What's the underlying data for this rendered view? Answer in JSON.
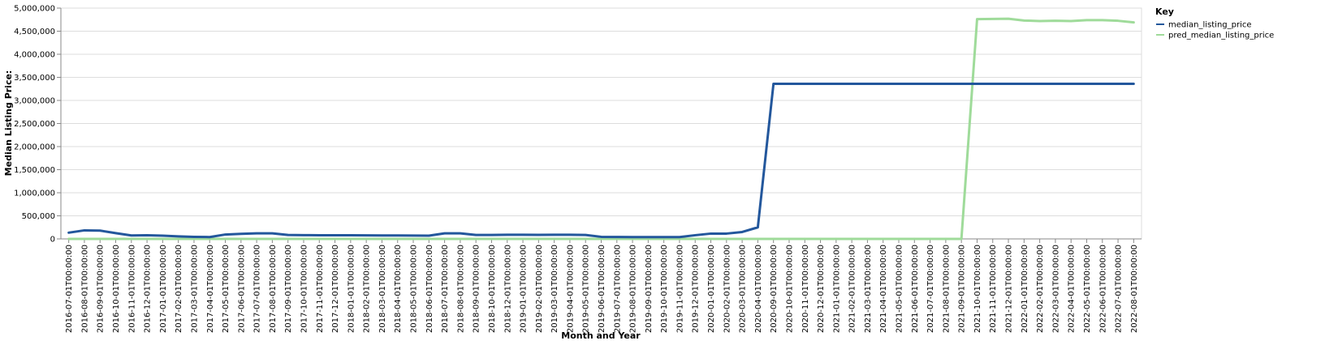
{
  "chart_data": {
    "type": "line",
    "xlabel": "Month and Year",
    "ylabel": "Median Listing Price:",
    "ylim": [
      0,
      5000000
    ],
    "y_ticks": [
      0,
      500000,
      1000000,
      1500000,
      2000000,
      2500000,
      3000000,
      3500000,
      4000000,
      4500000,
      5000000
    ],
    "y_tick_labels": [
      "0",
      "500,000",
      "1,000,000",
      "1,500,000",
      "2,000,000",
      "2,500,000",
      "3,000,000",
      "3,500,000",
      "4,000,000",
      "4,500,000",
      "5,000,000"
    ],
    "grid": true,
    "legend": {
      "title": "Key",
      "placement": "right"
    },
    "x": [
      "2016-07-01T00:00:00",
      "2016-08-01T00:00:00",
      "2016-09-01T00:00:00",
      "2016-10-01T00:00:00",
      "2016-11-01T00:00:00",
      "2016-12-01T00:00:00",
      "2017-01-01T00:00:00",
      "2017-02-01T00:00:00",
      "2017-03-01T00:00:00",
      "2017-04-01T00:00:00",
      "2017-05-01T00:00:00",
      "2017-06-01T00:00:00",
      "2017-07-01T00:00:00",
      "2017-08-01T00:00:00",
      "2017-09-01T00:00:00",
      "2017-10-01T00:00:00",
      "2017-11-01T00:00:00",
      "2017-12-01T00:00:00",
      "2018-01-01T00:00:00",
      "2018-02-01T00:00:00",
      "2018-03-01T00:00:00",
      "2018-04-01T00:00:00",
      "2018-05-01T00:00:00",
      "2018-06-01T00:00:00",
      "2018-07-01T00:00:00",
      "2018-08-01T00:00:00",
      "2018-09-01T00:00:00",
      "2018-10-01T00:00:00",
      "2018-12-01T00:00:00",
      "2019-01-01T00:00:00",
      "2019-02-01T00:00:00",
      "2019-03-01T00:00:00",
      "2019-04-01T00:00:00",
      "2019-05-01T00:00:00",
      "2019-06-01T00:00:00",
      "2019-07-01T00:00:00",
      "2019-08-01T00:00:00",
      "2019-09-01T00:00:00",
      "2019-10-01T00:00:00",
      "2019-11-01T00:00:00",
      "2019-12-01T00:00:00",
      "2020-01-01T00:00:00",
      "2020-02-01T00:00:00",
      "2020-03-01T00:00:00",
      "2020-04-01T00:00:00",
      "2020-09-01T00:00:00",
      "2020-10-01T00:00:00",
      "2020-11-01T00:00:00",
      "2020-12-01T00:00:00",
      "2021-01-01T00:00:00",
      "2021-02-01T00:00:00",
      "2021-03-01T00:00:00",
      "2021-04-01T00:00:00",
      "2021-05-01T00:00:00",
      "2021-06-01T00:00:00",
      "2021-07-01T00:00:00",
      "2021-08-01T00:00:00",
      "2021-09-01T00:00:00",
      "2021-10-01T00:00:00",
      "2021-11-01T00:00:00",
      "2021-12-01T00:00:00",
      "2022-01-01T00:00:00",
      "2022-02-01T00:00:00",
      "2022-03-01T00:00:00",
      "2022-04-01T00:00:00",
      "2022-05-01T00:00:00",
      "2022-06-01T00:00:00",
      "2022-07-01T00:00:00",
      "2022-08-01T00:00:00"
    ],
    "series": [
      {
        "name": "median_listing_price",
        "color": "#23579c",
        "values": [
          135000,
          185000,
          180000,
          125000,
          75000,
          80000,
          70000,
          55000,
          45000,
          40000,
          95000,
          110000,
          120000,
          120000,
          85000,
          82000,
          78000,
          80000,
          78000,
          77000,
          75000,
          74000,
          73000,
          70000,
          120000,
          120000,
          85000,
          85000,
          90000,
          90000,
          88000,
          90000,
          90000,
          85000,
          45000,
          42000,
          40000,
          40000,
          40000,
          40000,
          80000,
          115000,
          115000,
          150000,
          250000,
          3360000,
          3360000,
          3360000,
          3360000,
          3360000,
          3360000,
          3360000,
          3360000,
          3360000,
          3360000,
          3360000,
          3360000,
          3360000,
          3360000,
          3360000,
          3360000,
          3360000,
          3360000,
          3360000,
          3360000,
          3360000,
          3360000,
          3360000,
          3360000
        ]
      },
      {
        "name": "pred_median_listing_price",
        "color": "#9fdb9a",
        "values": [
          0,
          0,
          0,
          0,
          0,
          0,
          0,
          0,
          0,
          0,
          0,
          0,
          0,
          0,
          0,
          0,
          0,
          0,
          0,
          0,
          0,
          0,
          0,
          0,
          0,
          0,
          0,
          0,
          0,
          0,
          0,
          0,
          0,
          0,
          0,
          0,
          0,
          0,
          0,
          0,
          0,
          0,
          0,
          0,
          0,
          0,
          0,
          0,
          0,
          0,
          0,
          0,
          0,
          0,
          0,
          0,
          0,
          0,
          4760000,
          4765000,
          4770000,
          4730000,
          4720000,
          4725000,
          4720000,
          4740000,
          4740000,
          4725000,
          4690000
        ]
      }
    ]
  }
}
